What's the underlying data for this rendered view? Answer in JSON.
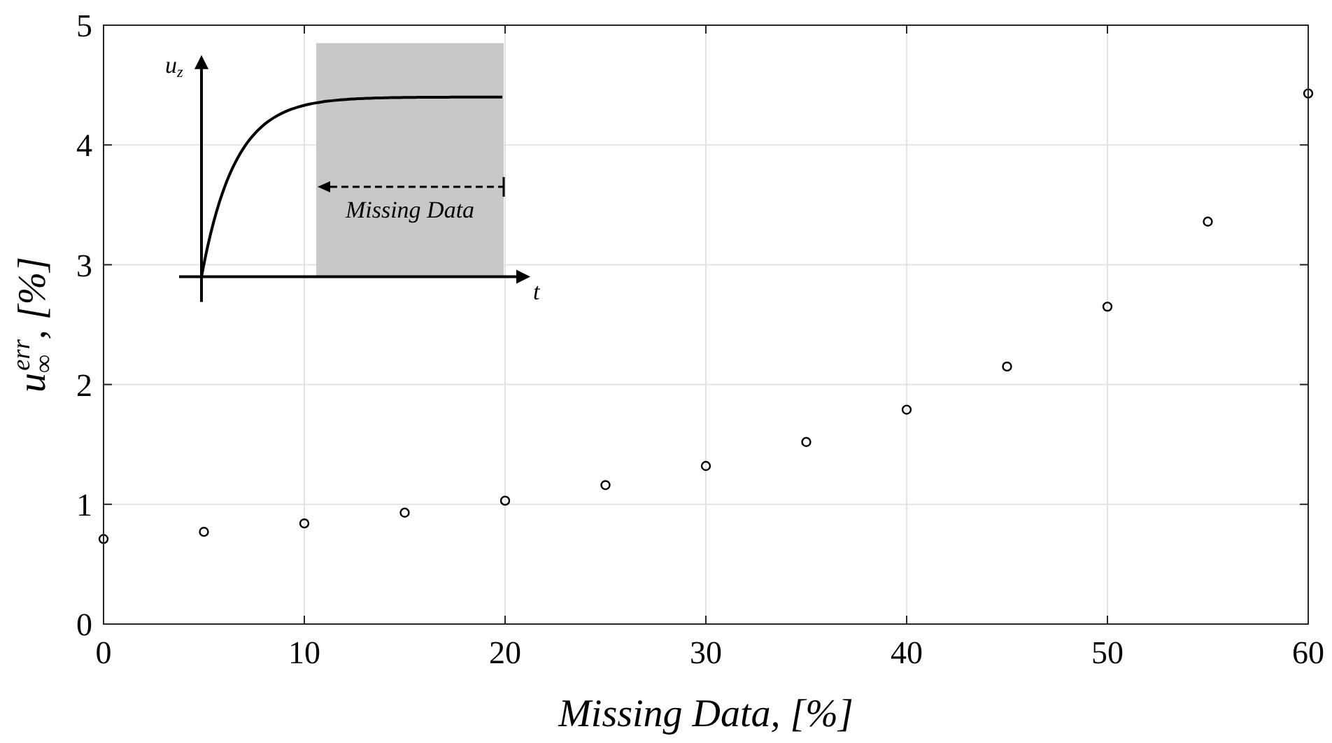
{
  "chart_data": {
    "type": "scatter",
    "xlabel": "Missing Data, [%]",
    "ylabel": "u$_{∞}$$^{err}$, [%]",
    "x": [
      0,
      5,
      10,
      15,
      20,
      25,
      30,
      35,
      40,
      45,
      50,
      55,
      60
    ],
    "series": [
      {
        "color": "#000000",
        "values": [
          0.71,
          0.77,
          0.84,
          0.93,
          1.03,
          1.16,
          1.32,
          1.52,
          1.79,
          2.15,
          2.65,
          3.36,
          4.43
        ]
      }
    ],
    "xlim": [
      0,
      60
    ],
    "xticks": [
      0,
      10,
      20,
      30,
      40,
      50,
      60
    ],
    "ylim": [
      0,
      5
    ],
    "yticks": [
      0,
      1,
      2,
      3,
      4,
      5
    ],
    "grid": true,
    "marker": "circle",
    "annotations": [
      "u$_{z}$",
      "t",
      "Missing Data"
    ]
  }
}
